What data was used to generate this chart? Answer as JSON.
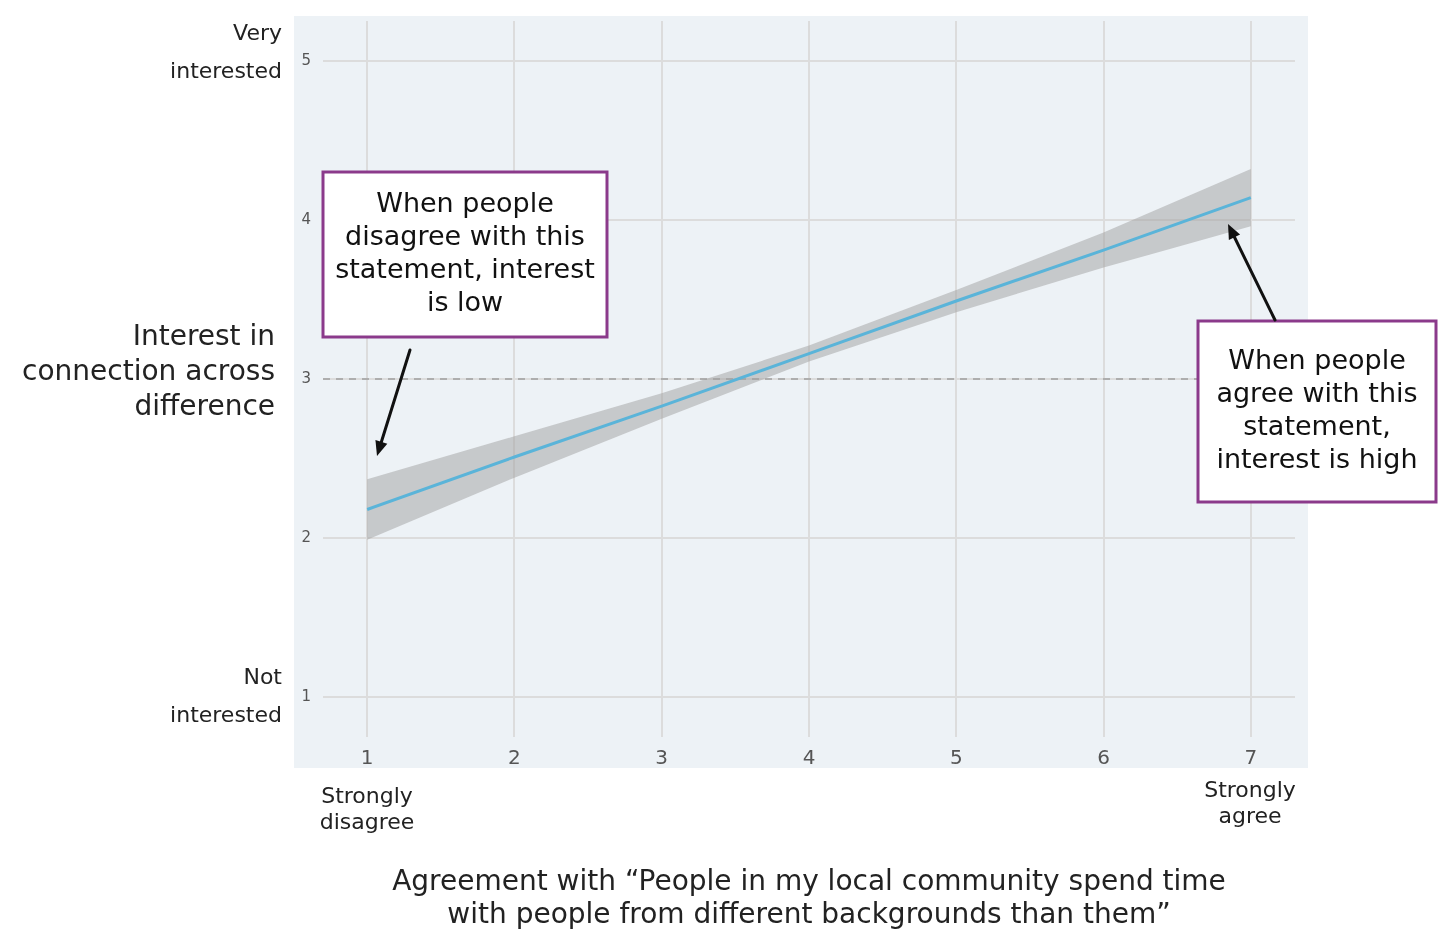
{
  "chart_data": {
    "type": "line",
    "xlabel": "Agreement with “People in my local community spend time with people from different backgrounds than them”",
    "ylabel": "Interest in connection across difference",
    "x": [
      1,
      2,
      3,
      4,
      5,
      6,
      7
    ],
    "series": [
      {
        "color": "#5ab4d9",
        "values": [
          2.18,
          2.51,
          2.83,
          3.16,
          3.49,
          3.81,
          4.14
        ],
        "lower": [
          1.99,
          2.38,
          2.75,
          3.11,
          3.42,
          3.7,
          3.96
        ],
        "upper": [
          2.37,
          2.64,
          2.91,
          3.21,
          3.56,
          3.92,
          4.32
        ]
      }
    ],
    "xlim": [
      0.7,
      7.3
    ],
    "xticks": [
      1,
      2,
      3,
      4,
      5,
      6,
      7
    ],
    "ylim": [
      0.75,
      5.25
    ],
    "yticks": [
      1,
      2,
      3,
      4,
      5
    ],
    "grid": true,
    "legend": false,
    "marker": "none",
    "line_style": "solid",
    "ref_lines": [
      {
        "axis": "y",
        "value": 3,
        "color": "#9e9e9e",
        "line_style": "dashed"
      }
    ],
    "annotations": [
      "Very interested",
      "Not interested",
      "Strongly disagree",
      "Strongly agree",
      "When people disagree with this statement, interest is low",
      "When people agree with this statement, interest is high"
    ]
  }
}
